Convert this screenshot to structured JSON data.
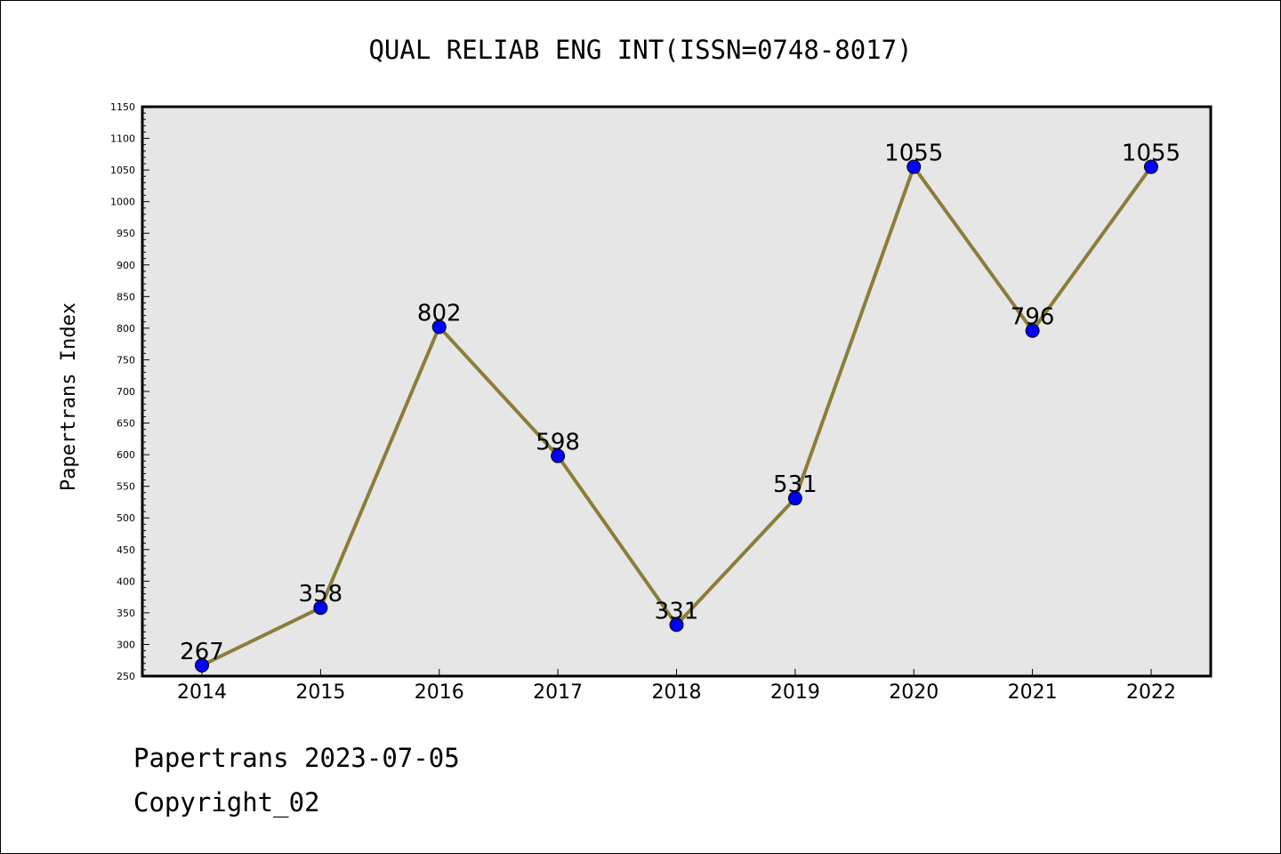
{
  "chart_data": {
    "type": "line",
    "title": "QUAL RELIAB ENG INT(ISSN=0748-8017)",
    "xlabel": "",
    "ylabel": "Papertrans Index",
    "categories": [
      "2014",
      "2015",
      "2016",
      "2017",
      "2018",
      "2019",
      "2020",
      "2021",
      "2022"
    ],
    "values": [
      267,
      358,
      802,
      598,
      331,
      531,
      1055,
      796,
      1055
    ],
    "data_labels": [
      "267",
      "358",
      "802",
      "598",
      "331",
      "531",
      "1055",
      "796",
      "1055"
    ],
    "ylim": [
      250,
      1150
    ],
    "yticks": [
      250,
      300,
      350,
      400,
      450,
      500,
      550,
      600,
      650,
      700,
      750,
      800,
      850,
      900,
      950,
      1000,
      1050,
      1100,
      1150
    ],
    "grid": false,
    "line_color": "#8b7d3a",
    "marker_color": "#0000ff",
    "plot_background": "#e6e6e6"
  },
  "footer": {
    "date_line": "Papertrans 2023-07-05",
    "copyright_line": "Copyright_02"
  }
}
